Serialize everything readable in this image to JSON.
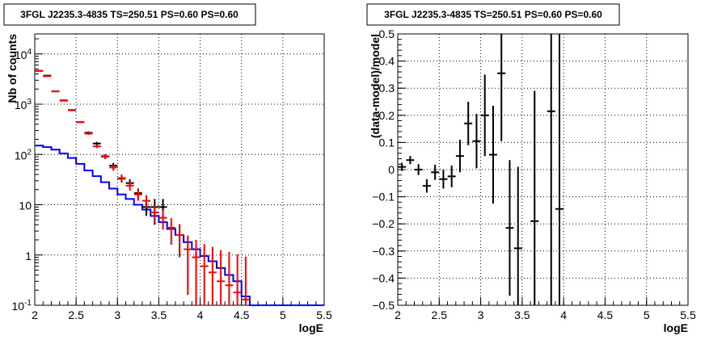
{
  "chart_data": [
    {
      "type": "histogram",
      "title": "3FGL J2235.3-4835 TS=250.51 PS=0.60 PS=0.60",
      "xlabel": "logE",
      "ylabel": "Nb of counts",
      "xlim": [
        2,
        5.5
      ],
      "ylim": [
        0.1,
        25000
      ],
      "yscale": "log",
      "grid": true,
      "x_ticks": [
        "2",
        "2.5",
        "3",
        "3.5",
        "4",
        "4.5",
        "5",
        "5.5"
      ],
      "y_ticks": [
        "10^-1",
        "1",
        "10",
        "10^2",
        "10^3",
        "10^4"
      ],
      "colors": {
        "data": "#000000",
        "model_points": "#ff0000",
        "model_line": "#0000ff"
      },
      "series": [
        {
          "kind": "errorbar",
          "color": "#000000",
          "x": [
            2.05,
            2.15,
            2.25,
            2.35,
            2.45,
            2.55,
            2.65,
            2.75,
            2.85,
            2.95,
            3.05,
            3.15,
            3.25,
            3.35,
            3.45,
            3.55
          ],
          "y": [
            4600,
            3700,
            1800,
            1180,
            760,
            440,
            270,
            165,
            92,
            60,
            33,
            27,
            17,
            9,
            9,
            9
          ],
          "yerr_low": [
            68,
            61,
            42,
            34,
            27,
            21,
            16,
            13,
            9.5,
            8,
            5.5,
            5,
            4,
            3,
            5,
            4
          ],
          "yerr_high": [
            68,
            61,
            42,
            34,
            27,
            21,
            16,
            13,
            9.5,
            8,
            5.5,
            5,
            4,
            3,
            4,
            4
          ]
        },
        {
          "kind": "errorbar",
          "color": "#ff0000",
          "x": [
            2.05,
            2.15,
            2.25,
            2.35,
            2.45,
            2.55,
            2.65,
            2.75,
            2.85,
            2.95,
            3.05,
            3.15,
            3.25,
            3.35,
            3.45,
            3.55,
            3.65,
            3.75,
            3.85,
            3.95,
            4.05,
            4.15,
            4.25,
            4.35,
            4.45,
            4.55
          ],
          "y": [
            4600,
            3600,
            1800,
            1200,
            770,
            440,
            260,
            145,
            90,
            55,
            34,
            24,
            16,
            12,
            7,
            5.5,
            3.5,
            2.5,
            1.3,
            0.9,
            0.6,
            0.45,
            0.3,
            0.25,
            0.18,
            0.13
          ],
          "yerr_low": [
            68,
            60,
            42,
            35,
            28,
            21,
            16,
            12,
            9.5,
            7.4,
            5.8,
            4.9,
            4,
            3.5,
            2.6,
            2.3,
            1.9,
            1.6,
            1.14,
            0.85,
            0.6,
            0.45,
            0.3,
            0.25,
            0.18,
            0.13
          ],
          "yerr_high": [
            68,
            60,
            42,
            35,
            28,
            21,
            16,
            12,
            9.5,
            7.4,
            5.8,
            4.9,
            4,
            3.5,
            2.6,
            2.3,
            1.9,
            1.6,
            1.14,
            1.1,
            1.05,
            1.0,
            0.95,
            0.9,
            0.85,
            0.8
          ]
        },
        {
          "kind": "step",
          "color": "#0000ff",
          "edges": [
            2.0,
            2.1,
            2.2,
            2.3,
            2.4,
            2.5,
            2.6,
            2.7,
            2.8,
            2.9,
            3.0,
            3.1,
            3.2,
            3.3,
            3.4,
            3.5,
            3.6,
            3.7,
            3.8,
            3.9,
            4.0,
            4.1,
            4.2,
            4.3,
            4.4,
            4.5,
            4.6,
            5.5
          ],
          "values": [
            150,
            140,
            125,
            105,
            85,
            65,
            48,
            37,
            28,
            21,
            16,
            13,
            10,
            8,
            6,
            4.5,
            3.3,
            2.5,
            1.8,
            1.3,
            0.95,
            0.75,
            0.55,
            0.4,
            0.3,
            0.15,
            0.1
          ]
        }
      ]
    },
    {
      "type": "scatter",
      "title": "3FGL J2235.3-4835 TS=250.51 PS=0.60 PS=0.60",
      "xlabel": "logE",
      "ylabel": "(data-model)/model",
      "xlim": [
        2,
        5.5
      ],
      "ylim": [
        -0.5,
        0.5
      ],
      "grid": true,
      "x_ticks": [
        "2",
        "2.5",
        "3",
        "3.5",
        "4",
        "4.5",
        "5",
        "5.5"
      ],
      "y_ticks": [
        "−0.5",
        "−0.4",
        "−0.3",
        "−0.2",
        "−0.1",
        "0",
        "0.1",
        "0.2",
        "0.3",
        "0.4",
        "0.5"
      ],
      "series": [
        {
          "kind": "errorbar",
          "color": "#000000",
          "x": [
            2.05,
            2.15,
            2.25,
            2.35,
            2.45,
            2.55,
            2.65,
            2.75,
            2.85,
            2.95,
            3.05,
            3.15,
            3.25,
            3.35,
            3.45,
            3.65,
            3.85,
            3.95
          ],
          "y": [
            0.01,
            0.035,
            0.0,
            -0.06,
            -0.01,
            -0.035,
            -0.025,
            0.05,
            0.17,
            0.105,
            0.2,
            0.055,
            0.355,
            -0.215,
            -0.29,
            -0.19,
            0.215,
            -0.145
          ],
          "yerr": [
            0.015,
            0.015,
            0.02,
            0.025,
            0.028,
            0.035,
            0.04,
            0.06,
            0.08,
            0.1,
            0.15,
            0.18,
            0.25,
            0.25,
            0.3,
            0.48,
            0.8,
            0.8
          ]
        }
      ]
    }
  ]
}
